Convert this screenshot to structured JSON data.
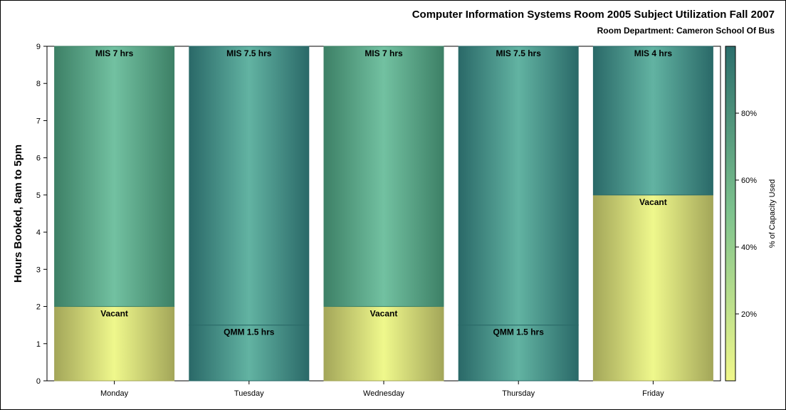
{
  "chart_data": {
    "type": "bar",
    "stacked": true,
    "title": "Computer Information Systems Room 2005 Subject Utilization Fall 2007",
    "subtitle": "Room Department:  Cameron School Of Bus",
    "ylabel": "Hours Booked, 8am to 5pm",
    "xlabel": "",
    "ylim": [
      0,
      9
    ],
    "yticks": [
      "0",
      "1",
      "2",
      "3",
      "4",
      "5",
      "6",
      "7",
      "8",
      "9"
    ],
    "categories": [
      "Monday",
      "Tuesday",
      "Wednesday",
      "Thursday",
      "Friday"
    ],
    "bars": [
      {
        "day": "Monday",
        "segments": [
          {
            "label": "Vacant",
            "value": 2,
            "kind": "vacant"
          },
          {
            "label": "MIS 7 hrs",
            "value": 7,
            "kind": "mid"
          }
        ]
      },
      {
        "day": "Tuesday",
        "segments": [
          {
            "label": "QMM 1.5 hrs",
            "value": 1.5,
            "kind": "dark"
          },
          {
            "label": "MIS 7.5 hrs",
            "value": 7.5,
            "kind": "dark"
          }
        ]
      },
      {
        "day": "Wednesday",
        "segments": [
          {
            "label": "Vacant",
            "value": 2,
            "kind": "vacant"
          },
          {
            "label": "MIS 7 hrs",
            "value": 7,
            "kind": "mid"
          }
        ]
      },
      {
        "day": "Thursday",
        "segments": [
          {
            "label": "QMM 1.5 hrs",
            "value": 1.5,
            "kind": "dark"
          },
          {
            "label": "MIS 7.5 hrs",
            "value": 7.5,
            "kind": "dark"
          }
        ]
      },
      {
        "day": "Friday",
        "segments": [
          {
            "label": "Vacant",
            "value": 5,
            "kind": "vacant"
          },
          {
            "label": "MIS 4 hrs",
            "value": 4,
            "kind": "dark"
          }
        ]
      }
    ],
    "colorbar": {
      "title": "% of Capacity Used",
      "ticks": [
        {
          "label": "20%",
          "value": 20
        },
        {
          "label": "40%",
          "value": 40
        },
        {
          "label": "60%",
          "value": 60
        },
        {
          "label": "80%",
          "value": 80
        }
      ],
      "range": [
        0,
        100
      ],
      "colors": [
        "#f0f78a",
        "#7ec38e",
        "#2b6e6c"
      ]
    },
    "segment_colors": {
      "vacant": {
        "edge": "#a3a659",
        "center": "#eff88c"
      },
      "mid": {
        "edge": "#3d8066",
        "center": "#72c1a1"
      },
      "dark": {
        "edge": "#2a6968",
        "center": "#62b3a2"
      }
    }
  }
}
